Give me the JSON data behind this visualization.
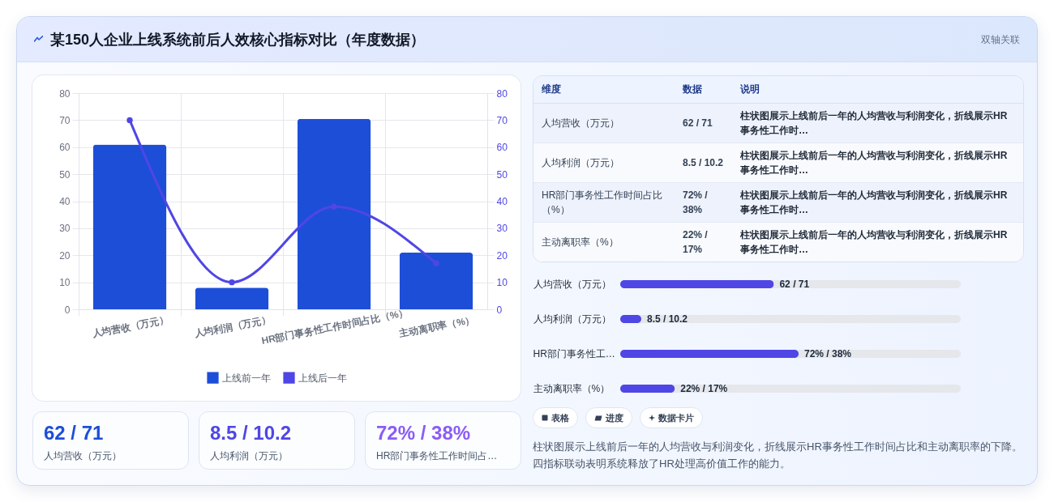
{
  "chart_data": [
    {
      "type": "other",
      "title": "某150人企业上线系统前后人效核心指标对比（年度数据）",
      "subtitle": "双轴关联"
    },
    {
      "type": "bar",
      "categories": [
        "人均营收（万元）",
        "人均利润（万元）",
        "HR部门事务性工作时间占比（%）",
        "主动离职率（%）"
      ],
      "series": [
        {
          "name": "上线前一年",
          "color": "#1d4ed8",
          "values": [
            61,
            8,
            70.5,
            21
          ]
        },
        {
          "name": "上线后一年",
          "type": "line",
          "axis": "y2",
          "color": "#4f46e5",
          "values": [
            70,
            10,
            38,
            17
          ]
        }
      ],
      "ylim": [
        0,
        80
      ],
      "yticks": [
        0,
        10,
        20,
        30,
        40,
        50,
        60,
        70,
        80
      ],
      "y2lim": [
        0,
        80
      ],
      "y2ticks": [
        0,
        10,
        20,
        30,
        40,
        50,
        60,
        70,
        80
      ],
      "grid": true,
      "legend": "bottom",
      "marker": "circle"
    },
    {
      "type": "other",
      "categories": [
        "维度",
        "数据",
        "说明"
      ],
      "annotations": [
        "人均营收（万元）",
        "62 / 71",
        "柱状图展示上线前后一年的人均营收与利润变化，折线展示HR事务性工作时…",
        "人均利润（万元）",
        "8.5 / 10.2",
        "柱状图展示上线前后一年的人均营收与利润变化，折线展示HR事务性工作时…",
        "HR部门事务性工作时间占比（%）",
        "72% / 38%",
        "柱状图展示上线前后一年的人均营收与利润变化，折线展示HR事务性工作时…",
        "主动离职率（%）",
        "22% / 17%",
        "柱状图展示上线前后一年的人均营收与利润变化，折线展示HR事务性工作时…"
      ]
    },
    {
      "type": "bar",
      "orientation": "horizontal",
      "categories": [
        "人均营收（万元）",
        "人均利润（万元）",
        "HR部门事务性工…",
        "主动离职率（%）"
      ],
      "values": [
        62,
        8.5,
        72,
        22
      ],
      "value_labels": [
        "62 / 71",
        "8.5 / 10.2",
        "72% / 38%",
        "22% / 17%"
      ],
      "color": "#4f46e5"
    },
    {
      "type": "other",
      "categories": [
        "人均营收（万元）",
        "人均利润（万元）",
        "HR部门事务性工作时间占…"
      ],
      "value_labels": [
        "62 / 71",
        "8.5 / 10.2",
        "72% / 38%"
      ]
    },
    {
      "type": "other",
      "categories": [
        "表格",
        "进度",
        "数据卡片"
      ],
      "annotations": [
        "柱状图展示上线前后一年的人均营收与利润变化，折线展示HR事务性工作时间占比和主动离职率的下降。四指标联动表明系统释放了HR处理高价值工作的能力。"
      ]
    }
  ]
}
